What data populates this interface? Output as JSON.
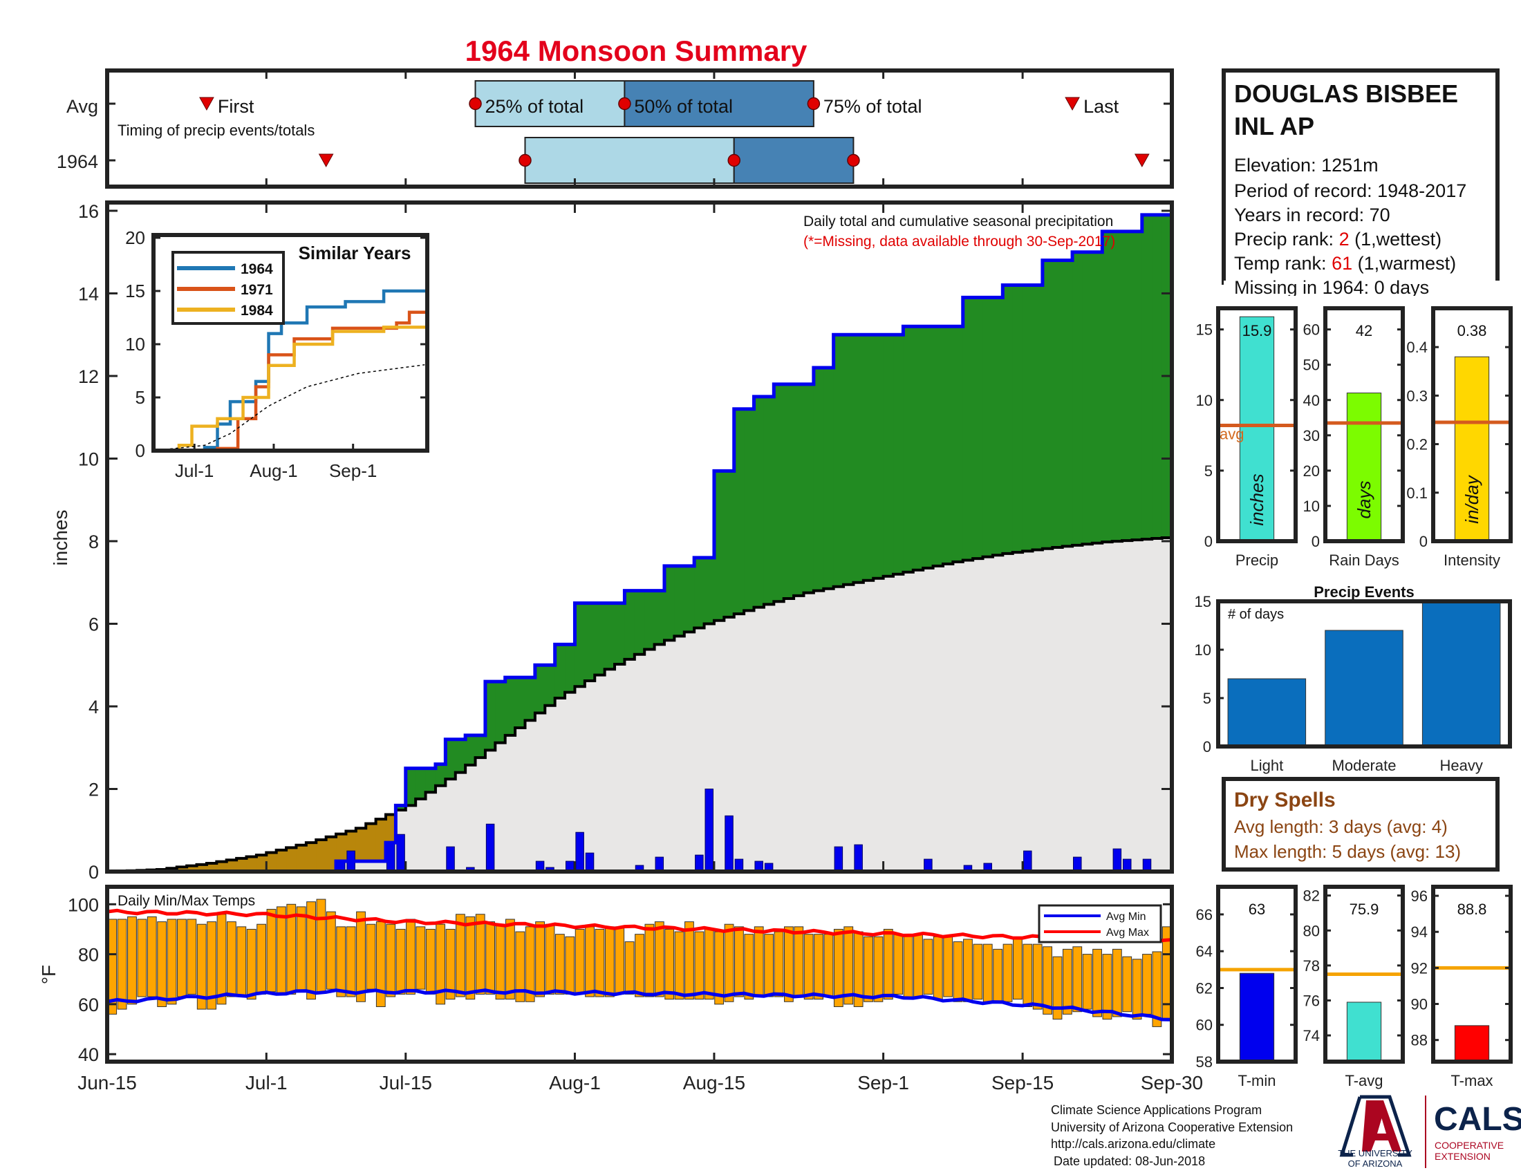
{
  "header": {
    "title": "1964 Monsoon Summary",
    "title_color": "#e3001b"
  },
  "station": {
    "name_line1": "DOUGLAS BISBEE",
    "name_line2": "INL AP",
    "elevation": "Elevation: 1251m",
    "period": "Period of record: 1948-2017",
    "years": "Years in record: 70",
    "precip_rank_label": "Precip rank: ",
    "precip_rank_value": "2",
    "precip_rank_note": " (1,wettest)",
    "temp_rank_label": "Temp rank: ",
    "temp_rank_value": "61",
    "temp_rank_note": " (1,warmest)",
    "missing": "Missing in 1964: 0 days"
  },
  "timing": {
    "row_avg": "Avg",
    "row_year": "1964",
    "subtitle": "Timing of precip events/totals",
    "first_label": "First",
    "last_label": "Last",
    "q25_label": "25% of total",
    "q50_label": "50% of total",
    "q75_label": "75% of total",
    "avg": {
      "first": 10,
      "q25": 37,
      "q50": 52,
      "q75": 71,
      "last": 97
    },
    "year": {
      "first": 22,
      "q25": 42,
      "q50": 63,
      "q75": 75,
      "last": 104
    },
    "colors": {
      "light": "#add8e6",
      "dark": "#4682b4",
      "marker": "#e00000"
    }
  },
  "main_chart": {
    "ylabel": "inches",
    "ticks_y": [
      "0",
      "2",
      "4",
      "6",
      "8",
      "10",
      "12",
      "14",
      "16"
    ],
    "ylim": [
      0,
      16.2
    ],
    "xlim_days": [
      0,
      107
    ],
    "xticks": [
      {
        "day": 0,
        "label": "Jun-15"
      },
      {
        "day": 16,
        "label": "Jul-1"
      },
      {
        "day": 30,
        "label": "Jul-15"
      },
      {
        "day": 47,
        "label": "Aug-1"
      },
      {
        "day": 61,
        "label": "Aug-15"
      },
      {
        "day": 78,
        "label": "Sep-1"
      },
      {
        "day": 92,
        "label": "Sep-15"
      },
      {
        "day": 107,
        "label": "Sep-30"
      }
    ],
    "note": "Daily total and cumulative seasonal precipitation",
    "note_missing": "(*=Missing, data available through 30-Sep-2017)",
    "colors": {
      "above": "#228b22",
      "below": "#b8860b",
      "avg_fill": "#e8e7e6",
      "cum": "#0000ee",
      "bars": "#0000ee"
    }
  },
  "chart_data": [
    {
      "type": "area",
      "title": "Daily total and cumulative seasonal precipitation",
      "ylabel": "inches",
      "x_unit": "days since Jun-15",
      "series": [
        {
          "name": "1964 cumulative",
          "points": [
            [
              0,
              0
            ],
            [
              23,
              0.25
            ],
            [
              28,
              0.7
            ],
            [
              29,
              1.6
            ],
            [
              30,
              2.5
            ],
            [
              33,
              2.6
            ],
            [
              34,
              3.2
            ],
            [
              36,
              3.3
            ],
            [
              38,
              4.6
            ],
            [
              40,
              4.7
            ],
            [
              43,
              5.0
            ],
            [
              45,
              5.5
            ],
            [
              47,
              6.5
            ],
            [
              52,
              6.8
            ],
            [
              56,
              7.4
            ],
            [
              59,
              7.6
            ],
            [
              61,
              9.7
            ],
            [
              63,
              11.2
            ],
            [
              65,
              11.5
            ],
            [
              67,
              11.8
            ],
            [
              71,
              12.2
            ],
            [
              73,
              13.0
            ],
            [
              77,
              13.0
            ],
            [
              80,
              13.2
            ],
            [
              86,
              13.9
            ],
            [
              90,
              14.2
            ],
            [
              94,
              14.8
            ],
            [
              97,
              15.0
            ],
            [
              100,
              15.5
            ],
            [
              104,
              15.9
            ],
            [
              107,
              15.9
            ]
          ]
        },
        {
          "name": "Avg cumulative",
          "points": [
            [
              0,
              0
            ],
            [
              5,
              0.05
            ],
            [
              10,
              0.2
            ],
            [
              15,
              0.4
            ],
            [
              20,
              0.7
            ],
            [
              25,
              1.05
            ],
            [
              30,
              1.6
            ],
            [
              35,
              2.4
            ],
            [
              40,
              3.3
            ],
            [
              45,
              4.2
            ],
            [
              50,
              4.9
            ],
            [
              55,
              5.5
            ],
            [
              60,
              6.0
            ],
            [
              65,
              6.4
            ],
            [
              70,
              6.75
            ],
            [
              75,
              7.0
            ],
            [
              80,
              7.25
            ],
            [
              85,
              7.5
            ],
            [
              90,
              7.7
            ],
            [
              95,
              7.85
            ],
            [
              100,
              7.98
            ],
            [
              107,
              8.1
            ]
          ]
        },
        {
          "name": "Daily totals",
          "bars": [
            [
              23,
              0.25
            ],
            [
              24,
              0.5
            ],
            [
              28,
              0.7
            ],
            [
              29,
              0.9
            ],
            [
              34,
              0.6
            ],
            [
              36,
              0.1
            ],
            [
              38,
              1.15
            ],
            [
              43,
              0.25
            ],
            [
              44,
              0.1
            ],
            [
              46,
              0.25
            ],
            [
              47,
              0.95
            ],
            [
              48,
              0.45
            ],
            [
              53,
              0.15
            ],
            [
              55,
              0.35
            ],
            [
              59,
              0.4
            ],
            [
              60,
              2.0
            ],
            [
              62,
              1.35
            ],
            [
              63,
              0.3
            ],
            [
              65,
              0.25
            ],
            [
              66,
              0.2
            ],
            [
              73,
              0.6
            ],
            [
              75,
              0.65
            ],
            [
              82,
              0.3
            ],
            [
              86,
              0.15
            ],
            [
              88,
              0.2
            ],
            [
              92,
              0.5
            ],
            [
              97,
              0.35
            ],
            [
              101,
              0.55
            ],
            [
              102,
              0.3
            ],
            [
              104,
              0.3
            ]
          ]
        }
      ]
    },
    {
      "type": "line",
      "title": "Similar Years",
      "xticks": [
        "Jul-1",
        "Aug-1",
        "Sep-1"
      ],
      "ylim": [
        0,
        20
      ],
      "yticks": [
        "0",
        "5",
        "10",
        "15",
        "20"
      ],
      "series": [
        {
          "name": "1964",
          "color": "#1f77b4",
          "points": [
            [
              0,
              0
            ],
            [
              20,
              0.3
            ],
            [
              25,
              2.5
            ],
            [
              30,
              4.6
            ],
            [
              40,
              6.5
            ],
            [
              45,
              11
            ],
            [
              50,
              12
            ],
            [
              60,
              13.5
            ],
            [
              75,
              14
            ],
            [
              90,
              15
            ],
            [
              107,
              15.9
            ]
          ]
        },
        {
          "name": "1971",
          "color": "#d95319",
          "points": [
            [
              0,
              0
            ],
            [
              25,
              0.2
            ],
            [
              33,
              3
            ],
            [
              40,
              6
            ],
            [
              45,
              9
            ],
            [
              55,
              10.5
            ],
            [
              70,
              11.5
            ],
            [
              95,
              12
            ],
            [
              100,
              13
            ],
            [
              107,
              13
            ]
          ]
        },
        {
          "name": "1984",
          "color": "#edb120",
          "points": [
            [
              0,
              0
            ],
            [
              10,
              0.5
            ],
            [
              15,
              2.3
            ],
            [
              25,
              3
            ],
            [
              35,
              5
            ],
            [
              45,
              8
            ],
            [
              55,
              10
            ],
            [
              70,
              11.2
            ],
            [
              90,
              11.6
            ],
            [
              107,
              11.8
            ]
          ]
        },
        {
          "name": "",
          "color": "#000000",
          "points": [
            [
              0,
              0
            ],
            [
              20,
              0.5
            ],
            [
              30,
              1.6
            ],
            [
              45,
              4.2
            ],
            [
              60,
              6.0
            ],
            [
              80,
              7.25
            ],
            [
              107,
              8.1
            ]
          ]
        }
      ]
    },
    {
      "type": "bar",
      "title": "Daily Min/Max Temps",
      "ylabel": "°F",
      "ylim": [
        37,
        107
      ],
      "yticks": [
        "40",
        "60",
        "80",
        "100"
      ],
      "legend": [
        "Avg Min",
        "Avg Max"
      ],
      "avg_min": [
        [
          0,
          61
        ],
        [
          20,
          65
        ],
        [
          40,
          65
        ],
        [
          60,
          64
        ],
        [
          80,
          63
        ],
        [
          95,
          59
        ],
        [
          107,
          54
        ]
      ],
      "avg_max": [
        [
          0,
          97
        ],
        [
          15,
          96
        ],
        [
          30,
          93
        ],
        [
          50,
          91
        ],
        [
          70,
          89
        ],
        [
          90,
          87
        ],
        [
          107,
          86
        ]
      ],
      "daily_min": [
        56,
        58,
        60,
        63,
        63,
        59,
        60,
        63,
        64,
        58,
        58,
        60,
        63,
        63,
        62,
        64,
        65,
        64,
        64,
        65,
        62,
        65,
        66,
        63,
        63,
        61,
        66,
        59,
        63,
        64,
        64,
        66,
        64,
        60,
        62,
        63,
        62,
        64,
        64,
        62,
        62,
        61,
        61,
        63,
        64,
        64,
        64,
        64,
        63,
        63,
        63,
        64,
        64,
        63,
        63,
        63,
        62,
        62,
        62,
        62,
        62,
        60,
        61,
        63,
        62,
        63,
        63,
        63,
        61,
        63,
        62,
        62,
        63,
        59,
        60,
        59,
        61,
        61,
        62,
        64,
        62,
        63,
        64,
        62,
        63,
        61,
        61,
        62,
        61,
        61,
        61,
        62,
        59,
        58,
        56,
        54,
        56,
        57,
        58,
        55,
        54,
        55,
        57,
        54,
        56,
        51,
        54
      ],
      "daily_max": [
        94,
        94,
        95,
        94,
        95,
        93,
        94,
        94,
        94,
        92,
        93,
        96,
        93,
        91,
        90,
        92,
        98,
        99,
        100,
        99,
        101,
        102,
        97,
        91,
        91,
        97,
        92,
        93,
        92,
        90,
        94,
        91,
        90,
        92,
        90,
        96,
        95,
        96,
        93,
        92,
        94,
        89,
        91,
        93,
        92,
        88,
        87,
        90,
        91,
        90,
        91,
        91,
        85,
        88,
        92,
        93,
        90,
        89,
        93,
        89,
        90,
        89,
        92,
        91,
        88,
        91,
        88,
        89,
        91,
        91,
        88,
        88,
        88,
        90,
        91,
        89,
        87,
        87,
        90,
        88,
        88,
        88,
        86,
        87,
        87,
        85,
        86,
        84,
        84,
        82,
        84,
        86,
        84,
        84,
        83,
        79,
        82,
        83,
        80,
        82,
        80,
        82,
        79,
        78,
        80,
        81,
        91
      ],
      "colors": {
        "bar": "#ffa500",
        "avg_min": "#0000ee",
        "avg_max": "#ff0000"
      }
    },
    {
      "type": "bar",
      "title": "Precip",
      "categories": [
        "Precip"
      ],
      "values": [
        15.9
      ],
      "value_label": "15.9",
      "avg": 8.2,
      "avg_label": "avg",
      "unit_label": "inches",
      "ylim": [
        0,
        16.5
      ],
      "yticks": [
        "0",
        "5",
        "10",
        "15"
      ],
      "color": "#40e0d0"
    },
    {
      "type": "bar",
      "title": "Rain Days",
      "categories": [
        "Rain Days"
      ],
      "values": [
        42
      ],
      "value_label": "42",
      "avg": 33.5,
      "unit_label": "days",
      "ylim": [
        0,
        66
      ],
      "yticks": [
        "0",
        "10",
        "20",
        "30",
        "40",
        "50",
        "60"
      ],
      "color": "#7cfc00"
    },
    {
      "type": "bar",
      "title": "Intensity",
      "categories": [
        "Intensity"
      ],
      "values": [
        0.38
      ],
      "value_label": "0.38",
      "avg": 0.245,
      "unit_label": "in/day",
      "ylim": [
        0,
        0.48
      ],
      "yticks": [
        "0",
        "0.1",
        "0.2",
        "0.3",
        "0.4"
      ],
      "color": "#ffd700"
    },
    {
      "type": "bar",
      "title": "Precip Events",
      "subtitle": "# of days",
      "categories": [
        "Light",
        "Moderate",
        "Heavy"
      ],
      "values": [
        7,
        12,
        15
      ],
      "ylim": [
        0,
        15
      ],
      "yticks": [
        "0",
        "5",
        "10",
        "15"
      ],
      "color": "#0a6ebd"
    },
    {
      "type": "bar",
      "title": "T-min",
      "categories": [
        "T-min"
      ],
      "values": [
        62.8
      ],
      "value_label": "63",
      "avg": 63,
      "ylim": [
        58,
        67.5
      ],
      "yticks": [
        "58",
        "60",
        "62",
        "64",
        "66"
      ],
      "color": "#0000ee"
    },
    {
      "type": "bar",
      "title": "T-avg",
      "categories": [
        "T-avg"
      ],
      "values": [
        75.9
      ],
      "value_label": "75.9",
      "avg": 77.5,
      "ylim": [
        72.5,
        82.5
      ],
      "yticks": [
        "74",
        "76",
        "78",
        "80",
        "82"
      ],
      "color": "#40e0d0"
    },
    {
      "type": "bar",
      "title": "T-max",
      "categories": [
        "T-max"
      ],
      "values": [
        88.8
      ],
      "value_label": "88.8",
      "avg": 92,
      "ylim": [
        86.8,
        96.5
      ],
      "yticks": [
        "88",
        "90",
        "92",
        "94",
        "96"
      ],
      "color": "#ff0000"
    }
  ],
  "dry_spells": {
    "title": "Dry Spells",
    "avg_length": "Avg length: 3 days (avg: 4)",
    "max_length": "Max length: 5 days (avg: 13)",
    "color": "#8b4513"
  },
  "footer": {
    "line1": "Climate Science Applications Program",
    "line2": "University of Arizona Cooperative Extension",
    "line3": "http://cals.arizona.edu/climate",
    "line4": "Date updated: 08-Jun-2018",
    "ua_line1": "THE UNIVERSITY",
    "ua_line2": "OF ARIZONA",
    "cals": "CALS",
    "cals_sub1": "COOPERATIVE",
    "cals_sub2": "EXTENSION",
    "ua_navy": "#0c234b",
    "ua_red": "#ab0520"
  }
}
